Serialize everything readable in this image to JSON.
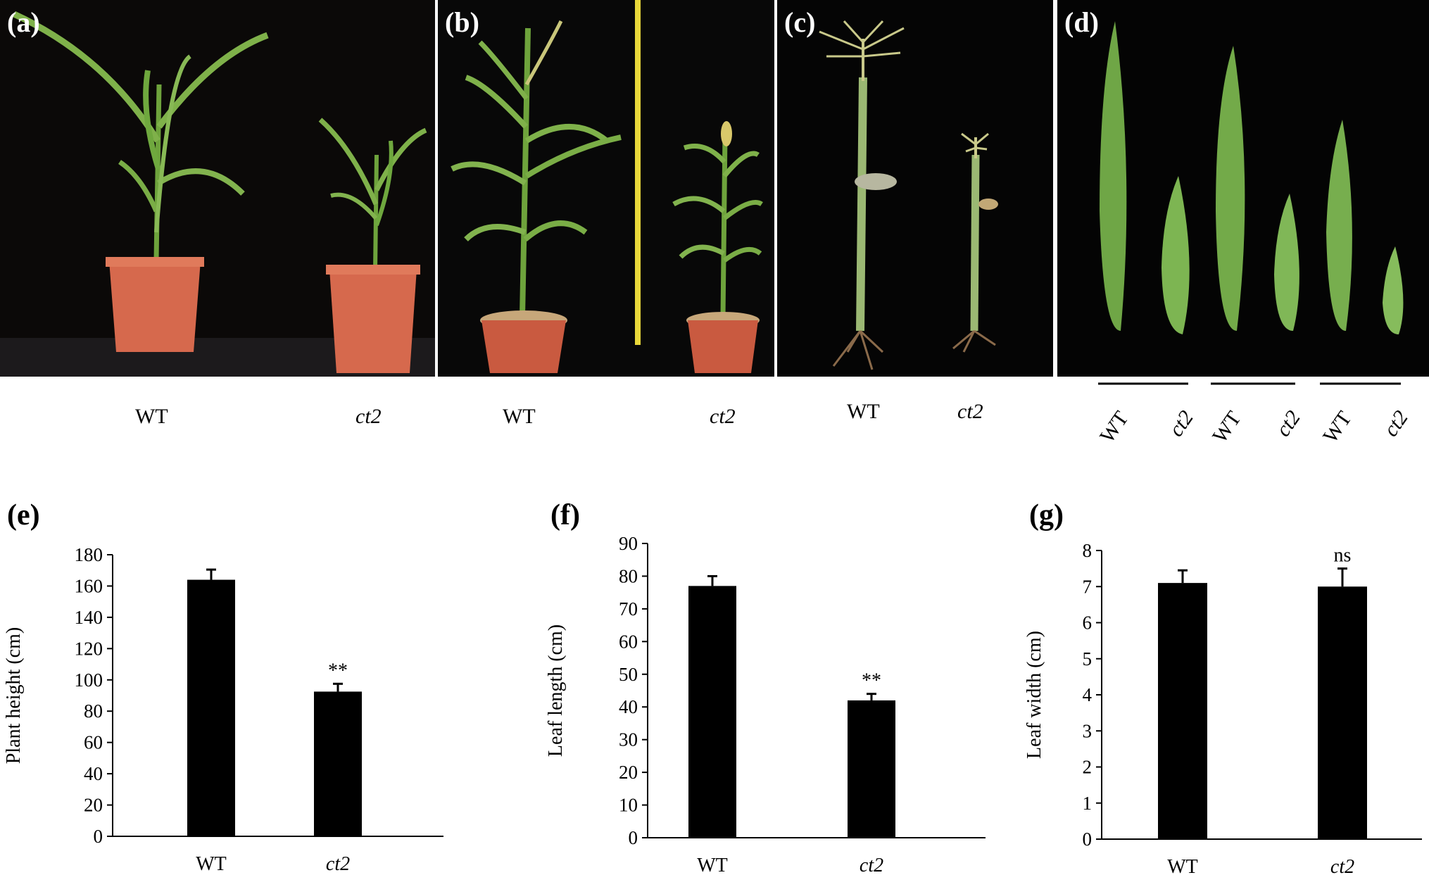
{
  "photos": [
    {
      "label": "(a)",
      "genotypes": [
        "WT",
        "ct2"
      ]
    },
    {
      "label": "(b)",
      "genotypes": [
        "WT",
        "ct2"
      ]
    },
    {
      "label": "(c)",
      "genotypes": [
        "WT",
        "ct2"
      ]
    },
    {
      "label": "(d)",
      "genotypes": [
        "WT",
        "ct2",
        "WT",
        "ct2",
        "WT",
        "ct2"
      ]
    }
  ],
  "colors": {
    "bar": "#000000",
    "plant": "#7fae46",
    "pot": "#d2644a",
    "photo_bg": "#060606"
  },
  "chart_data": [
    {
      "type": "bar",
      "panel": "(e)",
      "categories": [
        "WT",
        "ct2"
      ],
      "values": [
        164,
        92.5
      ],
      "errors": [
        6.5,
        5
      ],
      "significance": [
        "",
        "**"
      ],
      "ylabel": "Plant height (cm)",
      "ylim": [
        0,
        180
      ],
      "yticks": [
        0,
        20,
        40,
        60,
        80,
        100,
        120,
        140,
        160,
        180
      ]
    },
    {
      "type": "bar",
      "panel": "(f)",
      "categories": [
        "WT",
        "ct2"
      ],
      "values": [
        77,
        42
      ],
      "errors": [
        3,
        2
      ],
      "significance": [
        "",
        "**"
      ],
      "ylabel": "Leaf length (cm)",
      "ylim": [
        0,
        90
      ],
      "yticks": [
        0,
        10,
        20,
        30,
        40,
        50,
        60,
        70,
        80,
        90
      ]
    },
    {
      "type": "bar",
      "panel": "(g)",
      "categories": [
        "WT",
        "ct2"
      ],
      "values": [
        7.1,
        7.0
      ],
      "errors": [
        0.35,
        0.5
      ],
      "significance": [
        "",
        "ns"
      ],
      "ylabel": "Leaf width (cm)",
      "ylim": [
        0,
        8
      ],
      "yticks": [
        0,
        1,
        2,
        3,
        4,
        5,
        6,
        7,
        8
      ]
    }
  ]
}
